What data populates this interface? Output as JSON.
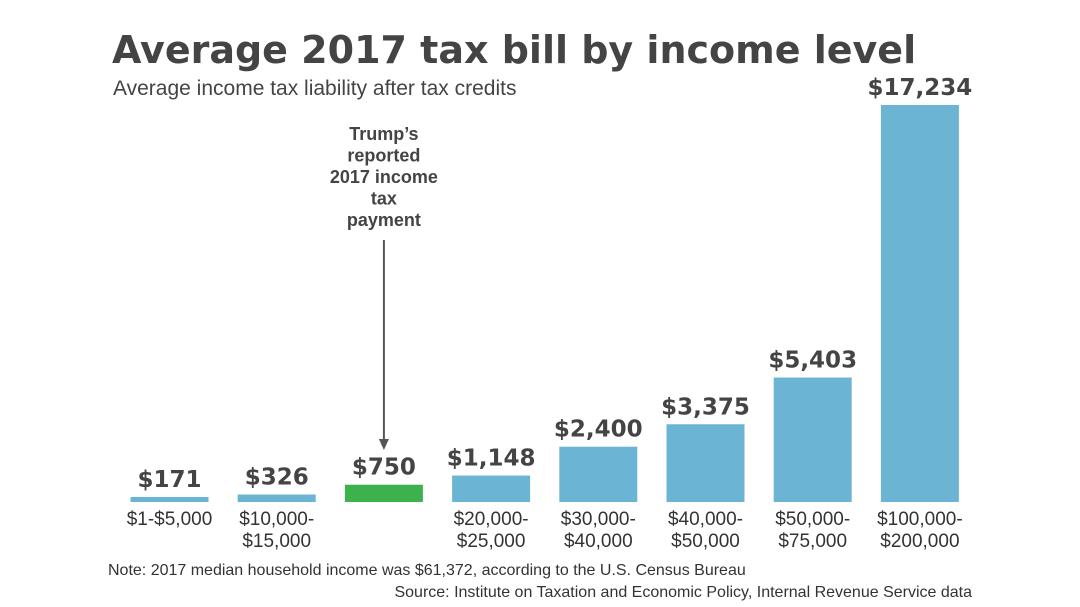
{
  "chart_data": {
    "type": "bar",
    "title": "Average 2017 tax bill by income level",
    "subtitle": "Average income tax liability after tax credits",
    "categories": [
      [
        "$1-$5,000"
      ],
      [
        "$10,000-",
        "$15,000"
      ],
      [],
      [
        "$20,000-",
        "$25,000"
      ],
      [
        "$30,000-",
        "$40,000"
      ],
      [
        "$40,000-",
        "$50,000"
      ],
      [
        "$50,000-",
        "$75,000"
      ],
      [
        "$100,000-",
        "$200,000"
      ]
    ],
    "values": [
      171,
      326,
      750,
      1148,
      2400,
      3375,
      5403,
      17234
    ],
    "value_labels": [
      "$171",
      "$326",
      "$750",
      "$1,148",
      "$2,400",
      "$3,375",
      "$5,403",
      "$17,234"
    ],
    "highlight_index": 2,
    "colors": {
      "bar": "#6bb4d3",
      "highlight": "#3db14c",
      "text": "#444444"
    },
    "annotation": {
      "target_index": 2,
      "lines": [
        "Trump’s",
        "reported",
        "2017 income",
        "tax",
        "payment"
      ]
    },
    "note": "Note: 2017 median household income was $61,372, according to the U.S. Census Bureau",
    "source": "Source: Institute on Taxation and Economic Policy, Internal Revenue Service data",
    "ylim": [
      0,
      17234
    ],
    "grid": false
  }
}
